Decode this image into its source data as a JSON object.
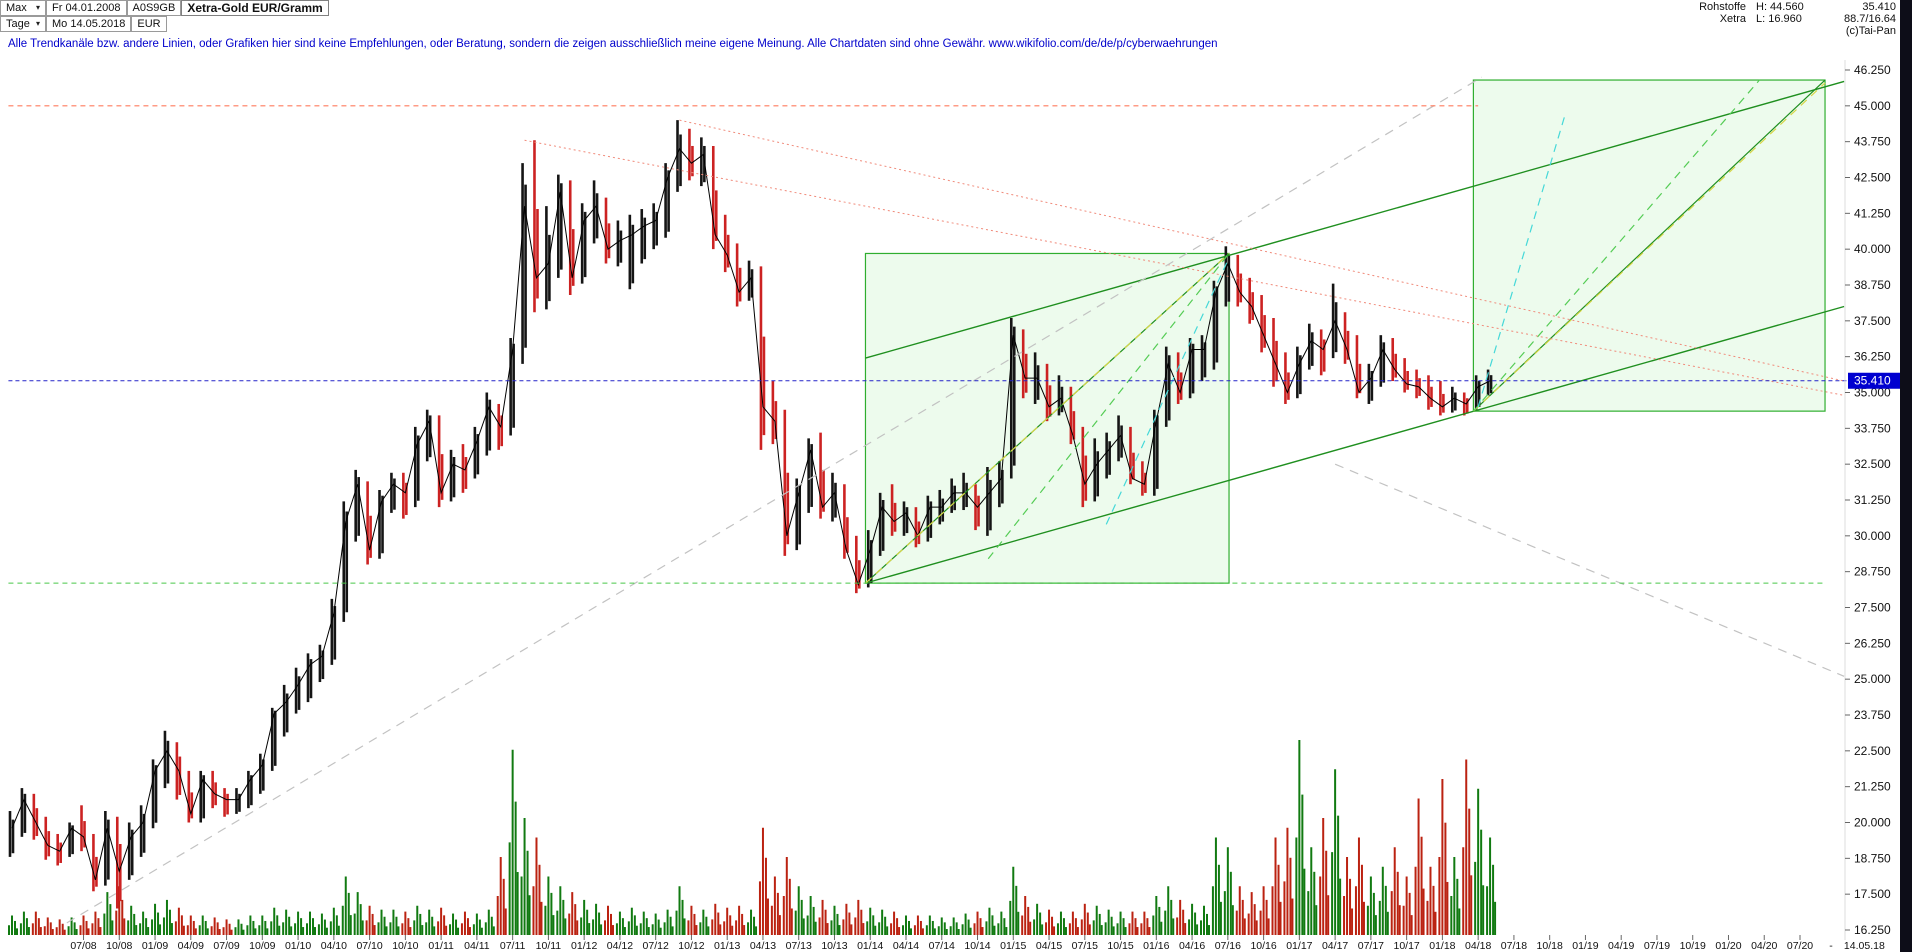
{
  "header": {
    "range_label": "Max",
    "start_date": "Fr 04.01.2008",
    "wkn": "A0S9GB",
    "title": "Xetra-Gold EUR/Gramm",
    "period_label": "Tage",
    "end_date": "Mo 14.05.2018",
    "currency": "EUR",
    "category": "Rohstoffe",
    "high": "H: 44.560",
    "exchange": "Xetra",
    "low": "L: 16.960",
    "last": "35.410",
    "stat": "88.7/16.64",
    "copyright": "(c)Tai-Pan"
  },
  "disclaimer": "Alle Trendkanäle bzw. andere Linien, oder Grafiken hier sind keine Empfehlungen, oder Beratung, sondern die zeigen ausschließlich meine eigene Meinung. Alle Chartdaten sind ohne Gewähr.  www.wikifolio.com/de/de/p/cyberwaehrungen",
  "axes": {
    "y_tick_labels": [
      "46.250",
      "45.000",
      "43.750",
      "42.500",
      "41.250",
      "40.000",
      "38.750",
      "37.500",
      "36.250",
      "35.000",
      "33.750",
      "32.500",
      "31.250",
      "30.000",
      "28.750",
      "27.500",
      "26.250",
      "25.000",
      "23.750",
      "22.500",
      "21.250",
      "20.000",
      "18.750",
      "17.500",
      "16.250"
    ],
    "x_tick_labels": [
      "07/08",
      "10/08",
      "01/09",
      "04/09",
      "07/09",
      "10/09",
      "01/10",
      "04/10",
      "07/10",
      "10/10",
      "01/11",
      "04/11",
      "07/11",
      "10/11",
      "01/12",
      "04/12",
      "07/12",
      "10/12",
      "01/13",
      "04/13",
      "07/13",
      "10/13",
      "01/14",
      "04/14",
      "07/14",
      "10/14",
      "01/15",
      "04/15",
      "07/15",
      "10/15",
      "01/16",
      "04/16",
      "07/16",
      "10/16",
      "01/17",
      "04/17",
      "07/17",
      "10/17",
      "01/18",
      "04/18",
      "07/18",
      "10/18",
      "01/19",
      "04/19",
      "07/19",
      "10/19",
      "01/20",
      "04/20",
      "07/20"
    ],
    "x_extra_labels": [
      {
        "label": "-",
        "m": 152.6
      },
      {
        "label": "14.05.18",
        "m": 155.4
      }
    ],
    "last_price_label": "35.410"
  },
  "chart_data": {
    "type": "candlestick",
    "title": "Xetra-Gold EUR/Gramm",
    "currency": "EUR",
    "x_unit": "month",
    "start_month": "2008-01",
    "end_month": "2018-05",
    "ylim": [
      16.25,
      46.25
    ],
    "y_step": 1.25,
    "last_price": 35.41,
    "session_high": 44.56,
    "session_low": 16.96,
    "colors": {
      "bull": "#151515",
      "bear": "#cc2222",
      "vol_up": "#117a11",
      "vol_down": "#bb2211",
      "box_stroke": "#2fae2f",
      "box_fill": "rgba(110,225,110,0.12)",
      "tag_bg": "#0000d0"
    },
    "monthly_hlcv": [
      [
        20.4,
        18.8,
        19.8,
        0.1
      ],
      [
        21.2,
        19.5,
        20.8,
        0.12
      ],
      [
        21.0,
        19.4,
        20.0,
        0.12
      ],
      [
        20.2,
        18.7,
        19.2,
        0.09
      ],
      [
        19.6,
        18.5,
        19.0,
        0.08
      ],
      [
        20.0,
        18.8,
        19.8,
        0.09
      ],
      [
        20.6,
        19.0,
        19.5,
        0.1
      ],
      [
        19.6,
        17.6,
        18.0,
        0.12
      ],
      [
        20.4,
        17.8,
        19.8,
        0.22
      ],
      [
        20.2,
        17.0,
        18.3,
        0.25
      ],
      [
        20.0,
        18.0,
        19.5,
        0.15
      ],
      [
        20.6,
        18.8,
        20.0,
        0.12
      ],
      [
        22.2,
        19.8,
        21.8,
        0.16
      ],
      [
        23.2,
        21.2,
        22.5,
        0.18
      ],
      [
        22.8,
        20.8,
        21.8,
        0.14
      ],
      [
        21.8,
        20.0,
        20.3,
        0.1
      ],
      [
        21.8,
        20.0,
        21.5,
        0.1
      ],
      [
        21.8,
        20.5,
        21.0,
        0.09
      ],
      [
        21.2,
        20.2,
        20.8,
        0.08
      ],
      [
        21.2,
        20.3,
        20.8,
        0.08
      ],
      [
        21.8,
        20.5,
        21.5,
        0.1
      ],
      [
        22.4,
        21.0,
        22.0,
        0.1
      ],
      [
        24.0,
        21.8,
        23.8,
        0.14
      ],
      [
        24.8,
        23.0,
        24.2,
        0.13
      ],
      [
        25.4,
        23.8,
        24.8,
        0.12
      ],
      [
        25.9,
        24.2,
        25.5,
        0.12
      ],
      [
        26.2,
        24.9,
        25.8,
        0.11
      ],
      [
        27.8,
        25.5,
        27.3,
        0.14
      ],
      [
        31.2,
        27.0,
        30.5,
        0.3
      ],
      [
        32.3,
        29.8,
        31.8,
        0.22
      ],
      [
        31.9,
        29.0,
        29.5,
        0.15
      ],
      [
        31.6,
        29.2,
        31.2,
        0.13
      ],
      [
        32.2,
        30.8,
        31.8,
        0.13
      ],
      [
        32.2,
        30.6,
        31.5,
        0.12
      ],
      [
        33.8,
        31.0,
        33.2,
        0.15
      ],
      [
        34.4,
        32.6,
        34.0,
        0.13
      ],
      [
        34.2,
        31.0,
        31.5,
        0.14
      ],
      [
        33.0,
        31.2,
        32.5,
        0.11
      ],
      [
        33.2,
        31.5,
        32.3,
        0.12
      ],
      [
        33.8,
        32.0,
        33.3,
        0.11
      ],
      [
        35.0,
        32.8,
        34.5,
        0.13
      ],
      [
        34.6,
        33.0,
        33.8,
        0.4
      ],
      [
        36.9,
        33.5,
        36.5,
        0.95
      ],
      [
        43.0,
        36.0,
        41.5,
        0.6
      ],
      [
        43.8,
        37.8,
        39.0,
        0.5
      ],
      [
        41.5,
        37.9,
        39.5,
        0.3
      ],
      [
        42.6,
        39.0,
        42.0,
        0.25
      ],
      [
        42.4,
        38.4,
        39.0,
        0.22
      ],
      [
        41.6,
        38.8,
        41.0,
        0.18
      ],
      [
        42.4,
        40.2,
        41.5,
        0.16
      ],
      [
        41.8,
        39.5,
        40.0,
        0.15
      ],
      [
        41.0,
        39.4,
        40.3,
        0.12
      ],
      [
        41.2,
        38.6,
        40.5,
        0.14
      ],
      [
        41.4,
        39.5,
        40.8,
        0.12
      ],
      [
        41.6,
        40.0,
        41.0,
        0.11
      ],
      [
        43.0,
        40.4,
        42.5,
        0.13
      ],
      [
        44.5,
        42.0,
        43.5,
        0.25
      ],
      [
        44.2,
        42.4,
        43.0,
        0.15
      ],
      [
        43.9,
        42.2,
        43.3,
        0.13
      ],
      [
        43.6,
        40.0,
        40.5,
        0.16
      ],
      [
        41.2,
        39.2,
        39.8,
        0.14
      ],
      [
        40.2,
        38.0,
        38.5,
        0.15
      ],
      [
        39.6,
        38.2,
        39.0,
        0.13
      ],
      [
        39.4,
        33.0,
        34.5,
        0.55
      ],
      [
        35.4,
        33.2,
        34.0,
        0.3
      ],
      [
        34.4,
        29.3,
        30.0,
        0.4
      ],
      [
        32.0,
        29.5,
        31.5,
        0.25
      ],
      [
        33.4,
        30.8,
        33.0,
        0.2
      ],
      [
        33.6,
        30.6,
        31.0,
        0.18
      ],
      [
        32.2,
        30.5,
        31.5,
        0.15
      ],
      [
        31.8,
        29.2,
        29.5,
        0.16
      ],
      [
        30.0,
        28.0,
        28.3,
        0.18
      ],
      [
        30.2,
        28.2,
        29.5,
        0.14
      ],
      [
        31.5,
        29.3,
        31.0,
        0.13
      ],
      [
        31.8,
        30.0,
        30.5,
        0.12
      ],
      [
        31.2,
        30.0,
        30.8,
        0.1
      ],
      [
        31.0,
        29.6,
        30.0,
        0.1
      ],
      [
        31.4,
        29.8,
        31.0,
        0.1
      ],
      [
        31.6,
        30.4,
        31.0,
        0.09
      ],
      [
        32.0,
        30.8,
        31.5,
        0.09
      ],
      [
        32.2,
        30.9,
        31.5,
        0.11
      ],
      [
        31.8,
        30.2,
        31.0,
        0.12
      ],
      [
        32.4,
        30.0,
        31.5,
        0.14
      ],
      [
        32.6,
        31.0,
        32.0,
        0.12
      ],
      [
        37.6,
        32.0,
        37.0,
        0.35
      ],
      [
        37.2,
        34.8,
        35.5,
        0.2
      ],
      [
        36.4,
        34.6,
        35.5,
        0.16
      ],
      [
        36.0,
        34.0,
        34.5,
        0.13
      ],
      [
        35.6,
        34.2,
        34.8,
        0.12
      ],
      [
        35.2,
        33.2,
        33.5,
        0.12
      ],
      [
        33.8,
        31.0,
        31.8,
        0.16
      ],
      [
        33.4,
        31.2,
        32.5,
        0.15
      ],
      [
        33.6,
        32.0,
        33.0,
        0.13
      ],
      [
        34.2,
        32.6,
        33.5,
        0.12
      ],
      [
        33.8,
        31.8,
        32.0,
        0.12
      ],
      [
        32.6,
        31.4,
        31.8,
        0.12
      ],
      [
        34.4,
        31.4,
        34.0,
        0.2
      ],
      [
        36.6,
        33.8,
        36.0,
        0.25
      ],
      [
        36.4,
        34.6,
        35.0,
        0.18
      ],
      [
        36.9,
        34.8,
        36.5,
        0.16
      ],
      [
        37.0,
        35.4,
        36.5,
        0.15
      ],
      [
        38.9,
        35.8,
        38.5,
        0.5
      ],
      [
        40.1,
        38.0,
        39.5,
        0.45
      ],
      [
        39.8,
        38.0,
        38.5,
        0.25
      ],
      [
        39.0,
        37.4,
        38.0,
        0.22
      ],
      [
        38.4,
        36.4,
        37.0,
        0.25
      ],
      [
        37.6,
        35.2,
        36.0,
        0.5
      ],
      [
        36.4,
        34.6,
        35.0,
        0.55
      ],
      [
        36.6,
        34.8,
        36.0,
        1.0
      ],
      [
        37.4,
        35.8,
        36.8,
        0.45
      ],
      [
        37.2,
        35.6,
        36.5,
        0.6
      ],
      [
        38.8,
        36.2,
        37.5,
        0.85
      ],
      [
        37.8,
        36.0,
        36.5,
        0.4
      ],
      [
        37.0,
        34.8,
        35.0,
        0.5
      ],
      [
        36.0,
        34.6,
        35.5,
        0.3
      ],
      [
        37.0,
        35.2,
        36.5,
        0.35
      ],
      [
        36.9,
        35.4,
        35.8,
        0.45
      ],
      [
        36.2,
        35.0,
        35.3,
        0.3
      ],
      [
        35.8,
        34.8,
        35.2,
        0.7
      ],
      [
        35.6,
        34.4,
        34.8,
        0.35
      ],
      [
        35.4,
        34.2,
        34.5,
        0.8
      ],
      [
        35.2,
        34.3,
        34.8,
        0.4
      ],
      [
        35.0,
        34.2,
        34.6,
        0.9
      ],
      [
        35.6,
        34.4,
        35.2,
        0.75
      ],
      [
        35.8,
        34.9,
        35.41,
        0.5
      ]
    ],
    "overlays": {
      "h_lines": [
        {
          "name": "resistance-45",
          "price": 45.0,
          "m1": -0.3,
          "m2": 123,
          "color": "#ff7b5e",
          "dash": "5,4"
        },
        {
          "name": "support-2013-low",
          "price": 28.35,
          "m1": -0.3,
          "m2": 152.1,
          "color": "#49c849",
          "dash": "5,4"
        },
        {
          "name": "last-price-line",
          "price": 35.41,
          "m1": -0.3,
          "m2": 154,
          "color": "#2323c8",
          "dash": "4,3"
        }
      ],
      "boxes": [
        {
          "name": "trend-channel-box-2014-2016",
          "m1": 71.6,
          "m2": 102.1,
          "p1": 28.35,
          "p2": 39.85
        },
        {
          "name": "trend-channel-box-2018-2020",
          "m1": 122.6,
          "m2": 152.1,
          "p1": 34.35,
          "p2": 45.9
        }
      ],
      "lines": [
        {
          "name": "channel-lower",
          "x": [
            71.6,
            153.7
          ],
          "p": [
            28.35,
            38.0
          ],
          "color": "#1f8f1f",
          "w": 1.4
        },
        {
          "name": "channel-upper",
          "x": [
            71.6,
            153.7
          ],
          "p": [
            36.2,
            45.85
          ],
          "color": "#1f8f1f",
          "w": 1.4
        },
        {
          "name": "box1-diagonal",
          "x": [
            71.6,
            102.1
          ],
          "p": [
            28.35,
            39.85
          ],
          "color": "#1f8f1f",
          "w": 1.2
        },
        {
          "name": "box2-diagonal",
          "x": [
            122.6,
            152.1
          ],
          "p": [
            34.35,
            45.9
          ],
          "color": "#1f8f1f",
          "w": 1.2
        },
        {
          "name": "fan-yellow-1",
          "x": [
            71.6,
            102.1
          ],
          "p": [
            28.35,
            39.85
          ],
          "color": "#d6d645",
          "dash": "8,6",
          "w": 1.2
        },
        {
          "name": "fan-green-1",
          "x": [
            81.9,
            102.1
          ],
          "p": [
            29.2,
            39.85
          ],
          "color": "#55cc55",
          "dash": "8,6",
          "w": 1.2
        },
        {
          "name": "fan-cyan-1",
          "x": [
            91.8,
            102.1
          ],
          "p": [
            30.4,
            39.7
          ],
          "color": "#45d8d8",
          "dash": "8,6",
          "w": 1.2
        },
        {
          "name": "fan-yellow-2",
          "x": [
            122.6,
            152.1
          ],
          "p": [
            34.35,
            45.8
          ],
          "color": "#d6d645",
          "dash": "8,6",
          "w": 1.2
        },
        {
          "name": "fan-green-2",
          "x": [
            122.6,
            146.6
          ],
          "p": [
            34.35,
            45.9
          ],
          "color": "#55cc55",
          "dash": "8,6",
          "w": 1.2
        },
        {
          "name": "fan-cyan-2",
          "x": [
            123.0,
            130.3
          ],
          "p": [
            34.5,
            44.7
          ],
          "color": "#45d8d8",
          "dash": "8,6",
          "w": 1.2
        },
        {
          "name": "resistance-fan-1",
          "x": [
            43,
            153.7
          ],
          "p": [
            43.8,
            34.9
          ],
          "color": "#f08a7a",
          "dash": "2,3",
          "w": 1
        },
        {
          "name": "resistance-fan-2",
          "x": [
            56,
            153.7
          ],
          "p": [
            44.5,
            35.4
          ],
          "color": "#f08a7a",
          "dash": "2,3",
          "w": 1
        },
        {
          "name": "longterm-support-gray",
          "x": [
            4.6,
            123.3
          ],
          "p": [
            16.5,
            46.0
          ],
          "color": "#c2c2c2",
          "dash": "9,7",
          "w": 1.2
        },
        {
          "name": "downtrend-gray",
          "x": [
            111,
            153.7
          ],
          "p": [
            32.5,
            25.1
          ],
          "color": "#c2c2c2",
          "dash": "9,7",
          "w": 1.2
        }
      ]
    }
  }
}
